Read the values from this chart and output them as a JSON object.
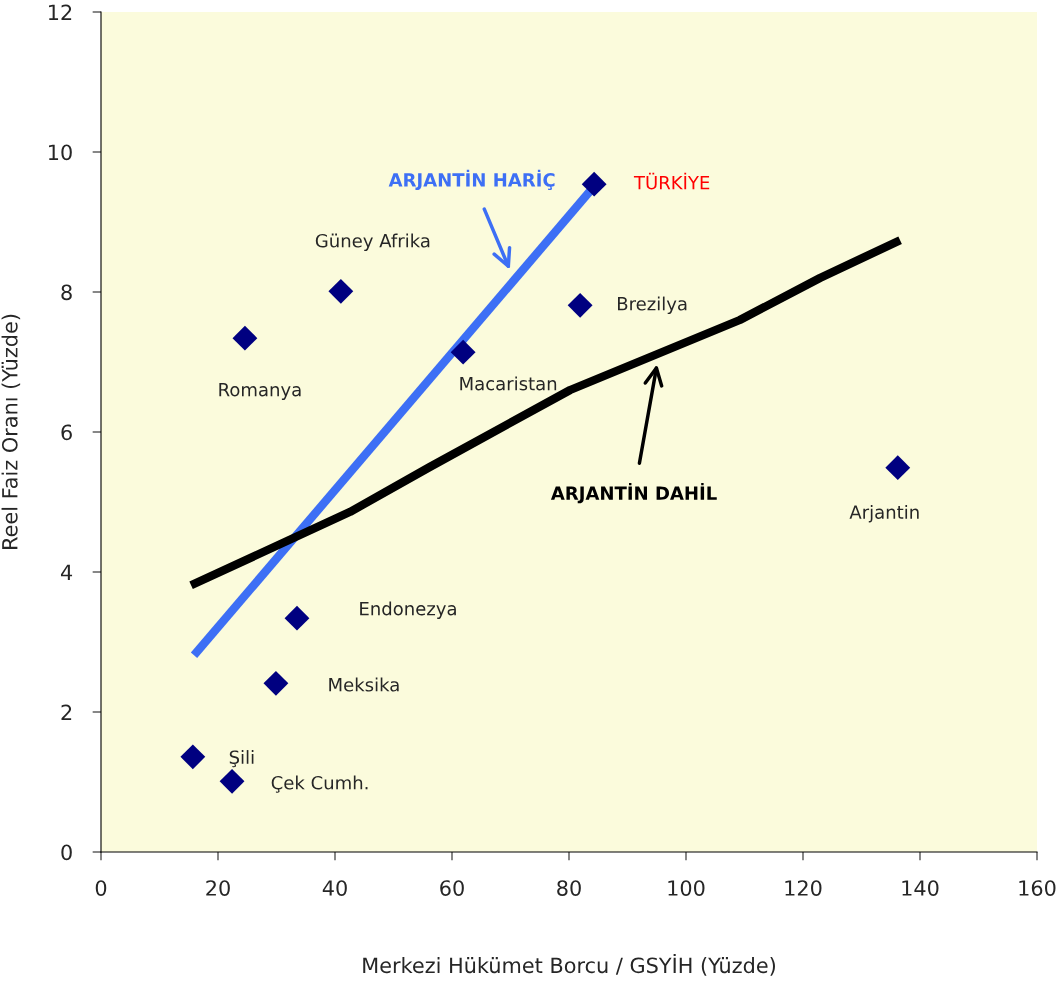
{
  "chart_data": {
    "type": "scatter",
    "xlabel": "Merkezi Hükümet Borcu / GSYİH (Yüzde)",
    "ylabel": "Reel Faiz Oranı (Yüzde)",
    "series": [
      {
        "color": "#000080",
        "marker": "diamond",
        "x": [
          84.3,
          41.0,
          81.9,
          24.6,
          61.9,
          136.2,
          33.5,
          29.9,
          15.7,
          22.4
        ],
        "values": [
          9.54,
          8.01,
          7.81,
          7.34,
          7.14,
          5.49,
          3.34,
          2.41,
          1.36,
          1.01
        ]
      },
      {
        "type": "line",
        "color": "#3d6ff5",
        "marker": "none",
        "line_style": "solid",
        "x": [
          15.9,
          84.3
        ],
        "values": [
          2.81,
          9.51
        ]
      },
      {
        "type": "line",
        "color": "#000000",
        "marker": "none",
        "line_style": "solid",
        "x": [
          15.4,
          42.6,
          56.2,
          80.2,
          109.2,
          122.9,
          136.6
        ],
        "values": [
          3.81,
          4.86,
          5.5,
          6.6,
          7.6,
          8.2,
          8.74
        ]
      }
    ],
    "annotations": [
      "TÜRKİYE",
      "Güney Afrika",
      "Brezilya",
      "Romanya",
      "Macaristan",
      "Arjantin",
      "Endonezya",
      "Meksika",
      "Şili",
      "Çek Cumh.",
      "ARJANTİN HARİÇ",
      "ARJANTİN DAHİL"
    ],
    "xlim": [
      0,
      160
    ],
    "xticks": [
      0,
      20,
      40,
      60,
      80,
      100,
      120,
      140,
      160
    ],
    "ylim": [
      0,
      12
    ],
    "yticks": [
      0,
      2,
      4,
      6,
      8,
      10,
      12
    ],
    "grid": false,
    "legend": false
  }
}
